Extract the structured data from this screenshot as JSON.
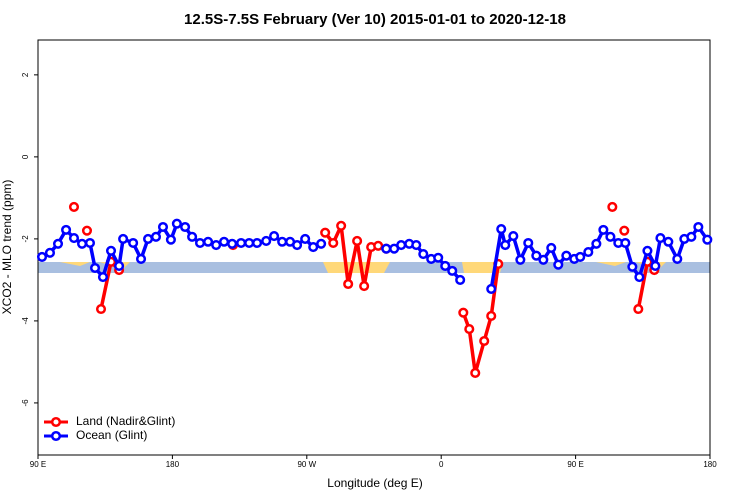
{
  "chart_data": {
    "type": "line",
    "title": "12.5S-7.5S February (Ver 10)   2015-01-01 to 2020-12-18",
    "xlabel": "Longitude (deg E)",
    "ylabel": "XCO2 - MLO trend (ppm)",
    "xlim": [
      90,
      540
    ],
    "ylim": [
      -7.27,
      2.85
    ],
    "xticks": [
      {
        "value": 90,
        "label": "90 E"
      },
      180,
      {
        "value": 270,
        "label": "90 W"
      },
      {
        "value": 360,
        "label": "0"
      },
      {
        "value": 450,
        "label": "90 E"
      },
      {
        "value": 540,
        "label": "180"
      }
    ],
    "yticks": [
      -6,
      -4,
      -2,
      0,
      2
    ],
    "legend": "lower left",
    "series": [
      {
        "name": "Land (Nadir&Glint)",
        "color": "#ff0000",
        "x": [
          114.1,
          null,
          122.8,
          null,
          132.2,
          138.9,
          144.3,
          null,
          220.6,
          null,
          282.3,
          287.7,
          293,
          297.7,
          303.7,
          308.4,
          313.1,
          317.8,
          323.2,
          null,
          374.8,
          378.8,
          382.8,
          388.8,
          393.5,
          398.2,
          null,
          474.6,
          null,
          482.6,
          null,
          492,
          498.1,
          502.7
        ],
        "values": [
          -1.22,
          null,
          -1.8,
          null,
          -3.71,
          -2.56,
          -2.76,
          null,
          -2.15,
          null,
          -1.85,
          -2.1,
          -1.68,
          -3.1,
          -2.05,
          -3.15,
          -2.2,
          -2.17,
          -2.24,
          null,
          -3.8,
          -4.2,
          -5.27,
          -4.49,
          -3.88,
          -2.61,
          null,
          -1.22,
          null,
          -1.8,
          null,
          -3.71,
          -2.56,
          -2.76
        ]
      },
      {
        "name": "Ocean (Glint)",
        "color": "#0000ff",
        "x": [
          92.7,
          98,
          103.4,
          108.8,
          114.1,
          119.5,
          124.8,
          128.2,
          133.5,
          138.9,
          144.3,
          147,
          153.7,
          159,
          163.7,
          169,
          173.7,
          179,
          183,
          188.5,
          193.2,
          198.5,
          203.9,
          209.3,
          214.6,
          220,
          226,
          231.4,
          236.7,
          242.8,
          248.1,
          253.5,
          258.8,
          263.5,
          268.9,
          274.3,
          279.6,
          null,
          323.2,
          328.5,
          333.2,
          338.6,
          343.3,
          348,
          353.3,
          358,
          362.7,
          367.4,
          372.7,
          null,
          393.5,
          400.2,
          402.9,
          408.3,
          413,
          418.3,
          423.7,
          428.4,
          433.7,
          438.4,
          443.8,
          449.1,
          453.1,
          458.5,
          463.9,
          468.6,
          473.3,
          478.6,
          483.3,
          488,
          492.7,
          498.1,
          503.4,
          506.8,
          512.1,
          518.1,
          522.8,
          527.5,
          532.2,
          538.2
        ],
        "values": [
          -2.44,
          -2.34,
          -2.12,
          -1.78,
          -1.98,
          -2.12,
          -2.1,
          -2.71,
          -2.93,
          -2.29,
          -2.66,
          -2.0,
          -2.1,
          -2.49,
          -2.0,
          -1.95,
          -1.71,
          -2.02,
          -1.63,
          -1.71,
          -1.95,
          -2.1,
          -2.07,
          -2.15,
          -2.07,
          -2.12,
          -2.1,
          -2.1,
          -2.1,
          -2.05,
          -1.93,
          -2.07,
          -2.07,
          -2.15,
          -2.0,
          -2.2,
          -2.12,
          null,
          -2.24,
          -2.24,
          -2.15,
          -2.12,
          -2.15,
          -2.37,
          -2.49,
          -2.46,
          -2.66,
          -2.78,
          -3.0,
          null,
          -3.22,
          -1.76,
          -2.15,
          -1.93,
          -2.51,
          -2.1,
          -2.41,
          -2.51,
          -2.22,
          -2.63,
          -2.41,
          -2.49,
          -2.44,
          -2.32,
          -2.12,
          -1.78,
          -1.95,
          -2.1,
          -2.1,
          -2.68,
          -2.93,
          -2.29,
          -2.66,
          -1.98,
          -2.07,
          -2.49,
          -2.0,
          -1.95,
          -1.71,
          -2.02
        ]
      }
    ]
  }
}
